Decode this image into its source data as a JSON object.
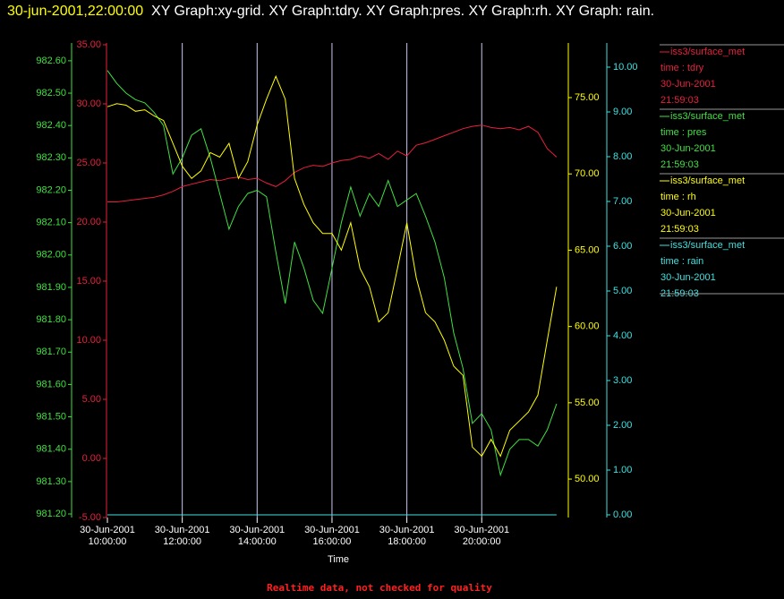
{
  "chart_data": {
    "type": "line",
    "title": {
      "time": "30-jun-2001,22:00:00",
      "text": "XY Graph:xy-grid.  XY Graph:tdry.  XY Graph:pres.  XY Graph:rh.  XY Graph: rain."
    },
    "xlabel": "Time",
    "footer": "Realtime data, not checked for quality",
    "grid": true,
    "xlim": [
      "2001-06-30T10:00",
      "2001-06-30T22:03"
    ],
    "xticks": [
      {
        "value": "2001-06-30T10:00",
        "label": [
          "30-Jun-2001",
          "10:00:00"
        ]
      },
      {
        "value": "2001-06-30T12:00",
        "label": [
          "30-Jun-2001",
          "12:00:00"
        ]
      },
      {
        "value": "2001-06-30T14:00",
        "label": [
          "30-Jun-2001",
          "14:00:00"
        ]
      },
      {
        "value": "2001-06-30T16:00",
        "label": [
          "30-Jun-2001",
          "16:00:00"
        ]
      },
      {
        "value": "2001-06-30T18:00",
        "label": [
          "30-Jun-2001",
          "18:00:00"
        ]
      },
      {
        "value": "2001-06-30T20:00",
        "label": [
          "30-Jun-2001",
          "20:00:00"
        ]
      }
    ],
    "x": [
      "2001-06-30T10:00",
      "2001-06-30T10:15",
      "2001-06-30T10:30",
      "2001-06-30T10:45",
      "2001-06-30T11:00",
      "2001-06-30T11:15",
      "2001-06-30T11:30",
      "2001-06-30T11:45",
      "2001-06-30T12:00",
      "2001-06-30T12:15",
      "2001-06-30T12:30",
      "2001-06-30T12:45",
      "2001-06-30T13:00",
      "2001-06-30T13:15",
      "2001-06-30T13:30",
      "2001-06-30T13:45",
      "2001-06-30T14:00",
      "2001-06-30T14:15",
      "2001-06-30T14:30",
      "2001-06-30T14:45",
      "2001-06-30T15:00",
      "2001-06-30T15:15",
      "2001-06-30T15:30",
      "2001-06-30T15:45",
      "2001-06-30T16:00",
      "2001-06-30T16:15",
      "2001-06-30T16:30",
      "2001-06-30T16:45",
      "2001-06-30T17:00",
      "2001-06-30T17:15",
      "2001-06-30T17:30",
      "2001-06-30T17:45",
      "2001-06-30T18:00",
      "2001-06-30T18:15",
      "2001-06-30T18:30",
      "2001-06-30T18:45",
      "2001-06-30T19:00",
      "2001-06-30T19:15",
      "2001-06-30T19:30",
      "2001-06-30T19:45",
      "2001-06-30T20:00",
      "2001-06-30T20:15",
      "2001-06-30T20:30",
      "2001-06-30T20:45",
      "2001-06-30T21:00",
      "2001-06-30T21:15",
      "2001-06-30T21:30",
      "2001-06-30T21:45",
      "2001-06-30T22:00"
    ],
    "series": [
      {
        "name": "iss3/surface_met",
        "legend_text": [
          "time : tdry",
          "30-Jun-2001",
          "21:59:03"
        ],
        "color": "#e8203c",
        "axis_side": "left-inner",
        "ylim": [
          -5,
          35.15
        ],
        "yticks": [
          {
            "value": 35,
            "label": "35.00"
          },
          {
            "value": 30,
            "label": "30.00"
          },
          {
            "value": 25,
            "label": "25.00"
          },
          {
            "value": 20,
            "label": "20.00"
          },
          {
            "value": 15,
            "label": "15.00"
          },
          {
            "value": 10,
            "label": "10.00"
          },
          {
            "value": 5,
            "label": "5.00"
          },
          {
            "value": 0,
            "label": "0.00"
          },
          {
            "value": -5,
            "label": "-5.00"
          }
        ],
        "values": [
          21.7,
          21.7,
          21.8,
          21.9,
          22.0,
          22.1,
          22.3,
          22.6,
          23.0,
          23.2,
          23.4,
          23.6,
          23.5,
          23.7,
          23.8,
          23.6,
          23.7,
          23.3,
          23.0,
          23.5,
          24.2,
          24.6,
          24.8,
          24.7,
          25.0,
          25.2,
          25.3,
          25.6,
          25.4,
          25.8,
          25.3,
          26.0,
          25.6,
          26.5,
          26.7,
          27.0,
          27.3,
          27.6,
          27.9,
          28.1,
          28.2,
          28.0,
          27.9,
          28.0,
          27.8,
          28.1,
          27.6,
          26.2,
          25.5
        ]
      },
      {
        "name": "iss3/surface_met",
        "legend_text": [
          "time : pres",
          "30-Jun-2001",
          "21:59:03"
        ],
        "color": "#40e040",
        "axis_side": "left-outer",
        "ylim": [
          981.189,
          982.655
        ],
        "yticks": [
          {
            "value": 982.6,
            "label": "982.60"
          },
          {
            "value": 982.5,
            "label": "982.50"
          },
          {
            "value": 982.4,
            "label": "982.40"
          },
          {
            "value": 982.3,
            "label": "982.30"
          },
          {
            "value": 982.2,
            "label": "982.20"
          },
          {
            "value": 982.1,
            "label": "982.10"
          },
          {
            "value": 982.0,
            "label": "982.00"
          },
          {
            "value": 981.9,
            "label": "981.90"
          },
          {
            "value": 981.8,
            "label": "981.80"
          },
          {
            "value": 981.7,
            "label": "981.70"
          },
          {
            "value": 981.6,
            "label": "981.60"
          },
          {
            "value": 981.5,
            "label": "981.50"
          },
          {
            "value": 981.4,
            "label": "981.40"
          },
          {
            "value": 981.3,
            "label": "981.30"
          },
          {
            "value": 981.2,
            "label": "981.20"
          }
        ],
        "values": [
          982.57,
          982.53,
          982.5,
          982.48,
          982.47,
          982.44,
          982.4,
          982.25,
          982.3,
          982.37,
          982.39,
          982.3,
          982.19,
          982.08,
          982.15,
          982.19,
          982.2,
          982.18,
          982.01,
          981.85,
          982.04,
          981.96,
          981.86,
          981.82,
          981.96,
          982.1,
          982.21,
          982.12,
          982.19,
          982.15,
          982.23,
          982.15,
          982.17,
          982.19,
          982.12,
          982.04,
          981.93,
          981.76,
          981.65,
          981.48,
          981.51,
          981.46,
          981.32,
          981.4,
          981.43,
          981.43,
          981.41,
          981.46,
          981.54
        ]
      },
      {
        "name": "iss3/surface_met",
        "legend_text": [
          "time : rh",
          "30-Jun-2001",
          "21:59:03"
        ],
        "color": "#ffff00",
        "axis_side": "right-inner",
        "ylim": [
          47.48,
          78.58
        ],
        "yticks": [
          {
            "value": 75,
            "label": "75.00"
          },
          {
            "value": 70,
            "label": "70.00"
          },
          {
            "value": 65,
            "label": "65.00"
          },
          {
            "value": 60,
            "label": "60.00"
          },
          {
            "value": 55,
            "label": "55.00"
          },
          {
            "value": 50,
            "label": "50.00"
          }
        ],
        "values": [
          74.4,
          74.6,
          74.5,
          74.1,
          74.2,
          73.8,
          73.5,
          72.0,
          70.5,
          69.7,
          70.2,
          71.4,
          71.1,
          72.0,
          69.7,
          70.8,
          73.2,
          74.9,
          76.4,
          74.9,
          69.7,
          68.0,
          66.8,
          66.1,
          66.1,
          65.0,
          66.8,
          63.8,
          62.6,
          60.3,
          60.9,
          63.8,
          66.8,
          63.2,
          60.9,
          60.3,
          59.1,
          57.4,
          56.8,
          52.1,
          51.5,
          52.6,
          51.5,
          53.2,
          53.8,
          54.4,
          55.5,
          59.1,
          62.6
        ]
      },
      {
        "name": "iss3/surface_met",
        "legend_text": [
          "time : rain",
          "30-Jun-2001",
          "21:59:03"
        ],
        "color": "#40e0e0",
        "axis_side": "right-outer",
        "ylim": [
          -0.06,
          10.54
        ],
        "yticks": [
          {
            "value": 10,
            "label": "10.00"
          },
          {
            "value": 9,
            "label": "9.00"
          },
          {
            "value": 8,
            "label": "8.00"
          },
          {
            "value": 7,
            "label": "7.00"
          },
          {
            "value": 6,
            "label": "6.00"
          },
          {
            "value": 5,
            "label": "5.00"
          },
          {
            "value": 4,
            "label": "4.00"
          },
          {
            "value": 3,
            "label": "3.00"
          },
          {
            "value": 2,
            "label": "2.00"
          },
          {
            "value": 1,
            "label": "1.00"
          },
          {
            "value": 0,
            "label": "0.00"
          }
        ],
        "values": [
          0,
          0,
          0,
          0,
          0,
          0,
          0,
          0,
          0,
          0,
          0,
          0,
          0,
          0,
          0,
          0,
          0,
          0,
          0,
          0,
          0,
          0,
          0,
          0,
          0,
          0,
          0,
          0,
          0,
          0,
          0,
          0,
          0,
          0,
          0,
          0,
          0,
          0,
          0,
          0,
          0,
          0,
          0,
          0,
          0,
          0,
          0,
          0,
          0
        ]
      }
    ]
  }
}
